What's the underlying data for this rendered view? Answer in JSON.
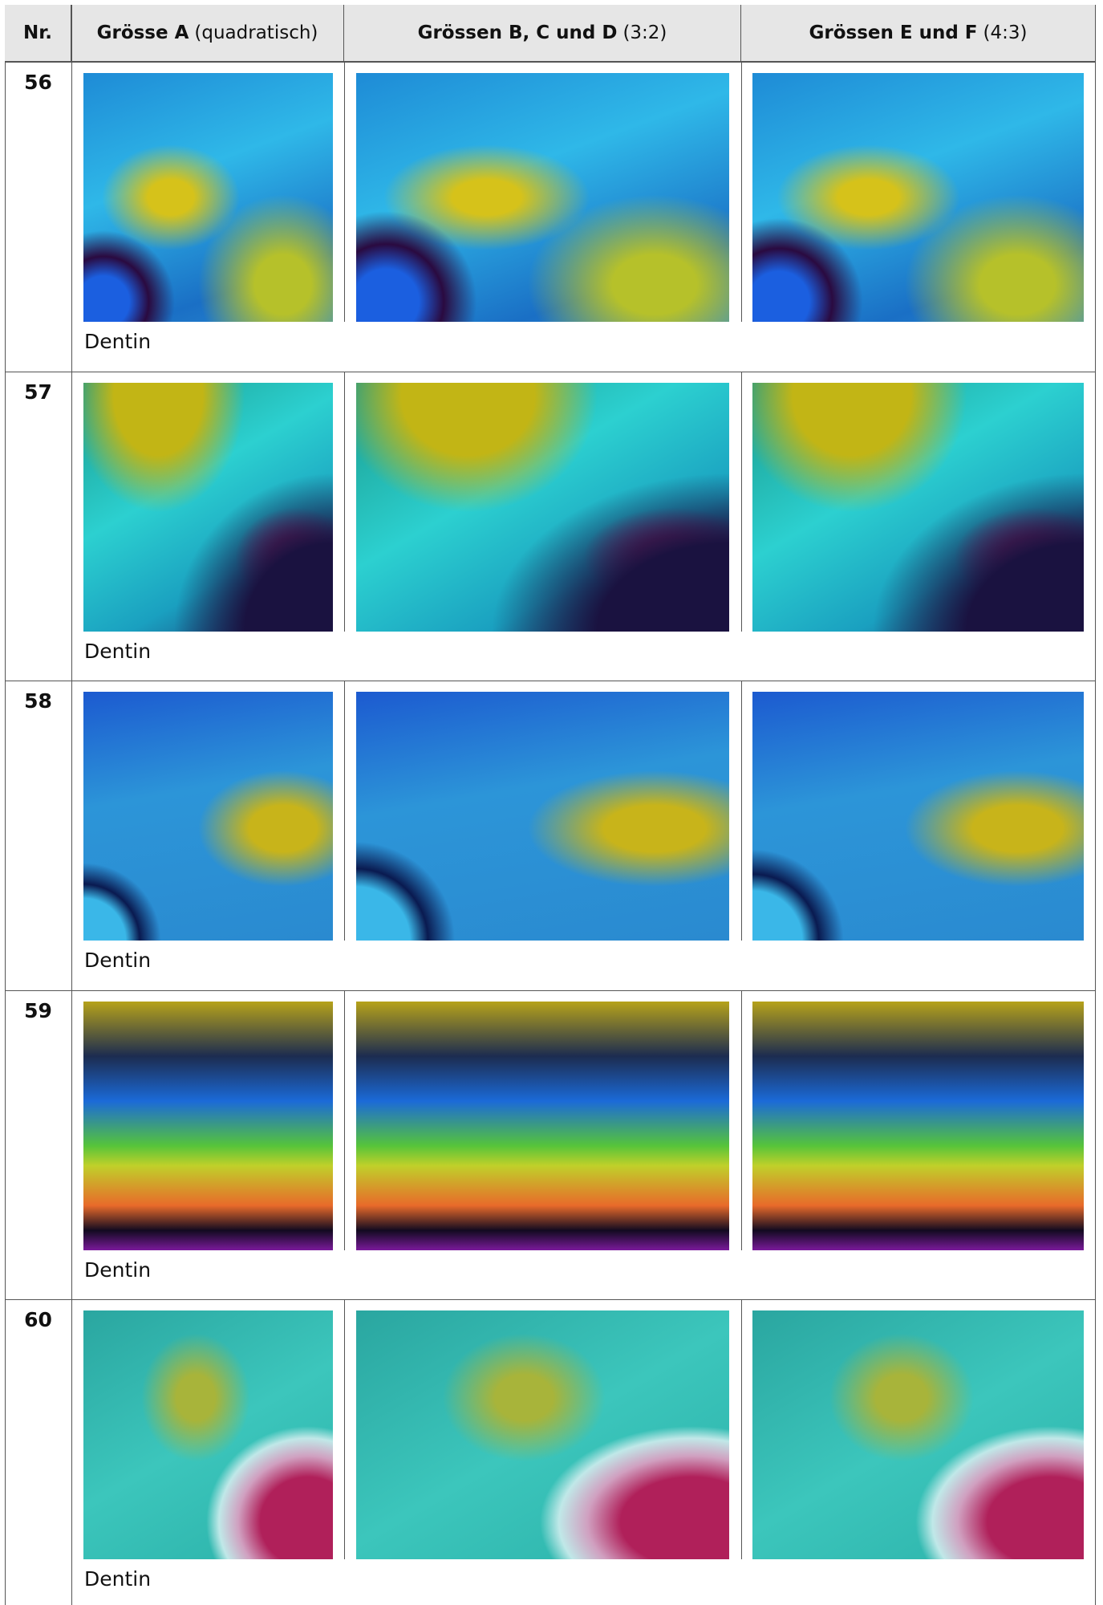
{
  "header": [
    {
      "bold": "Nr."
    },
    {
      "bold": "Grösse A",
      "normal": "(quadratisch)"
    },
    {
      "bold": "Grössen B, C und D",
      "normal": "(3:2)"
    },
    {
      "bold": "Grössen E und F",
      "normal": "(4:3)"
    }
  ],
  "rows": [
    {
      "number": "56",
      "caption": "Dentin"
    },
    {
      "number": "57",
      "caption": "Dentin"
    },
    {
      "number": "58",
      "caption": "Dentin"
    },
    {
      "number": "59",
      "caption": "Dentin"
    },
    {
      "number": "60",
      "caption": "Dentin"
    }
  ]
}
